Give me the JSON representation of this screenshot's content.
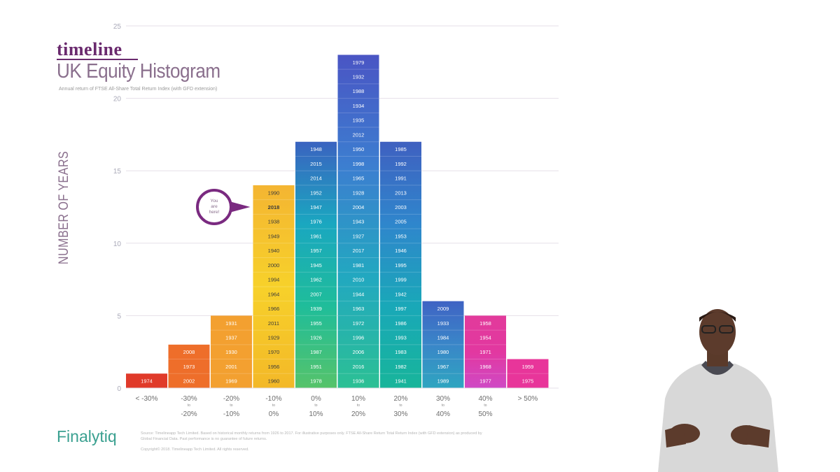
{
  "brand": "timeline",
  "logo": "Finalytiq",
  "chart_data": {
    "type": "bar",
    "title": "UK Equity Histogram",
    "subtitle": "Annual return of FTSE All-Share Total Return Index (with GFD extension)",
    "ylabel": "NUMBER OF YEARS",
    "xlabel": "",
    "ylim": [
      0,
      25
    ],
    "yticks": [
      0,
      5,
      10,
      15,
      20,
      25
    ],
    "grid": true,
    "categories": [
      {
        "top": "< -30%",
        "mid": "",
        "bottom": ""
      },
      {
        "top": "-30%",
        "mid": "to",
        "bottom": "-20%"
      },
      {
        "top": "-20%",
        "mid": "to",
        "bottom": "-10%"
      },
      {
        "top": "-10%",
        "mid": "to",
        "bottom": "0%"
      },
      {
        "top": "0%",
        "mid": "to",
        "bottom": "10%"
      },
      {
        "top": "10%",
        "mid": "to",
        "bottom": "20%"
      },
      {
        "top": "20%",
        "mid": "to",
        "bottom": "30%"
      },
      {
        "top": "30%",
        "mid": "to",
        "bottom": "40%"
      },
      {
        "top": "40%",
        "mid": "to",
        "bottom": "50%"
      },
      {
        "top": "> 50%",
        "mid": "",
        "bottom": ""
      }
    ],
    "values": [
      1,
      3,
      5,
      14,
      17,
      23,
      17,
      6,
      5,
      2
    ],
    "years": [
      [
        "1974"
      ],
      [
        "2008",
        "1973",
        "2002"
      ],
      [
        "1931",
        "1937",
        "1930",
        "2001",
        "1969"
      ],
      [
        "1990",
        "2018",
        "1938",
        "1949",
        "1940",
        "2000",
        "1994",
        "1964",
        "1966",
        "2011",
        "1929",
        "1970",
        "1956",
        "1960"
      ],
      [
        "1948",
        "2015",
        "2014",
        "1952",
        "1947",
        "1976",
        "1961",
        "1957",
        "1945",
        "1962",
        "2007",
        "1939",
        "1955",
        "1926",
        "1987",
        "1951",
        "1978"
      ],
      [
        "1979",
        "1932",
        "1988",
        "1934",
        "1935",
        "2012",
        "1950",
        "1998",
        "1965",
        "1928",
        "2004",
        "1943",
        "1927",
        "2017",
        "1981",
        "2010",
        "1944",
        "1963",
        "1972",
        "1996",
        "2006",
        "2016",
        "1936"
      ],
      [
        "1985",
        "1992",
        "1991",
        "2013",
        "2003",
        "2005",
        "1953",
        "1946",
        "1995",
        "1999",
        "1942",
        "1997",
        "1986",
        "1993",
        "1983",
        "1982",
        "1941"
      ],
      [
        "2009",
        "1933",
        "1984",
        "1980",
        "1967",
        "1989"
      ],
      [
        "1958",
        "1954",
        "1971",
        "1968",
        "1977"
      ],
      [
        "1959",
        "1975"
      ]
    ],
    "bar_colors": [
      "#e03a2a",
      "#ee6e2a",
      "#f3a030",
      "#f6c623",
      "#1d9fb8",
      "#3a7fce",
      "#3270b0",
      "#3d86c8",
      "#e83aa0",
      "#e8359a"
    ],
    "callout": {
      "text": "You are here!",
      "year": "2018",
      "color": "#7a2a80"
    }
  },
  "footer": {
    "source": "Source: Timelineapp Tech Limited. Based on historical monthly returns from 1926 to 2017. For illustrative purposes only. FTSE All-Share Return Total Return Index (with GFD extension) as produced by Global Financial Data. Past performance is no guarantee of future returns.",
    "copyright": "Copyright© 2018. Timelineapp Tech Limited. All rights reserved."
  }
}
